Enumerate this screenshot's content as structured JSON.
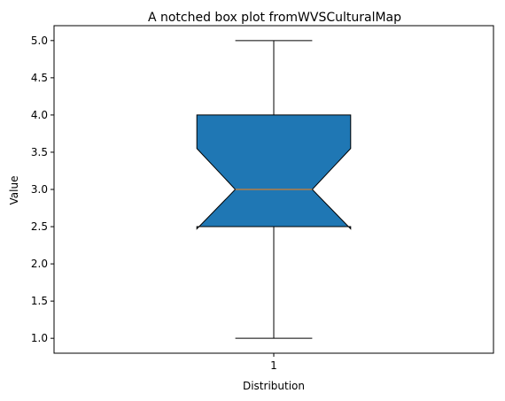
{
  "chart_data": {
    "type": "box",
    "title": "A notched box plot fromWVSCulturalMap",
    "xlabel": "Distribution",
    "ylabel": "Value",
    "categories": [
      "1"
    ],
    "ylim": [
      0.8,
      5.2
    ],
    "yticks": [
      1.0,
      1.5,
      2.0,
      2.5,
      3.0,
      3.5,
      4.0,
      4.5,
      5.0
    ],
    "ytick_labels": [
      "1.0",
      "1.5",
      "2.0",
      "2.5",
      "3.0",
      "3.5",
      "4.0",
      "4.5",
      "5.0"
    ],
    "boxes": [
      {
        "label": "1",
        "whisker_low": 1.0,
        "q1": 2.5,
        "median": 3.0,
        "q3": 4.0,
        "whisker_high": 5.0,
        "notch_low": 2.47,
        "notch_high": 3.55
      }
    ],
    "box_color": "#1f77b4",
    "median_color": "#ff7f0e",
    "grid": false
  }
}
